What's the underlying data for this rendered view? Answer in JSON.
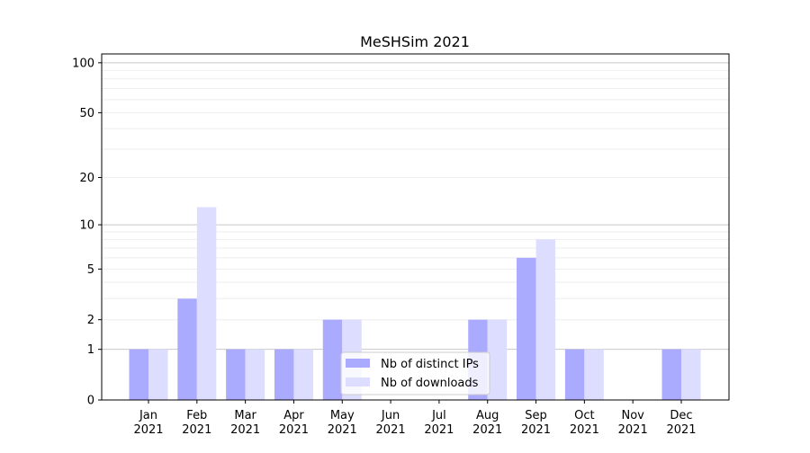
{
  "chart_data": {
    "type": "bar",
    "title": "MeSHSim 2021",
    "xlabel": "",
    "ylabel": "",
    "yscale": "log(1+x)",
    "ylim": [
      0,
      113
    ],
    "yticks": [
      0,
      1,
      2,
      5,
      10,
      20,
      50,
      100
    ],
    "ytick_labels": [
      "0",
      "1",
      "2",
      "5",
      "10",
      "20",
      "50",
      "100"
    ],
    "grid": true,
    "legend_position": "bottom-center",
    "categories": [
      "Jan\n2021",
      "Feb\n2021",
      "Mar\n2021",
      "Apr\n2021",
      "May\n2021",
      "Jun\n2021",
      "Jul\n2021",
      "Aug\n2021",
      "Sep\n2021",
      "Oct\n2021",
      "Nov\n2021",
      "Dec\n2021"
    ],
    "category_labels": [
      [
        "Jan",
        "2021"
      ],
      [
        "Feb",
        "2021"
      ],
      [
        "Mar",
        "2021"
      ],
      [
        "Apr",
        "2021"
      ],
      [
        "May",
        "2021"
      ],
      [
        "Jun",
        "2021"
      ],
      [
        "Jul",
        "2021"
      ],
      [
        "Aug",
        "2021"
      ],
      [
        "Sep",
        "2021"
      ],
      [
        "Oct",
        "2021"
      ],
      [
        "Nov",
        "2021"
      ],
      [
        "Dec",
        "2021"
      ]
    ],
    "series": [
      {
        "name": "Nb of distinct IPs",
        "color": "#aaaaff",
        "values": [
          1,
          3,
          1,
          1,
          2,
          0,
          0,
          2,
          6,
          1,
          0,
          1
        ]
      },
      {
        "name": "Nb of downloads",
        "color": "#ddddff",
        "values": [
          1,
          13,
          1,
          1,
          2,
          0,
          0,
          2,
          8,
          1,
          0,
          1
        ]
      }
    ]
  }
}
